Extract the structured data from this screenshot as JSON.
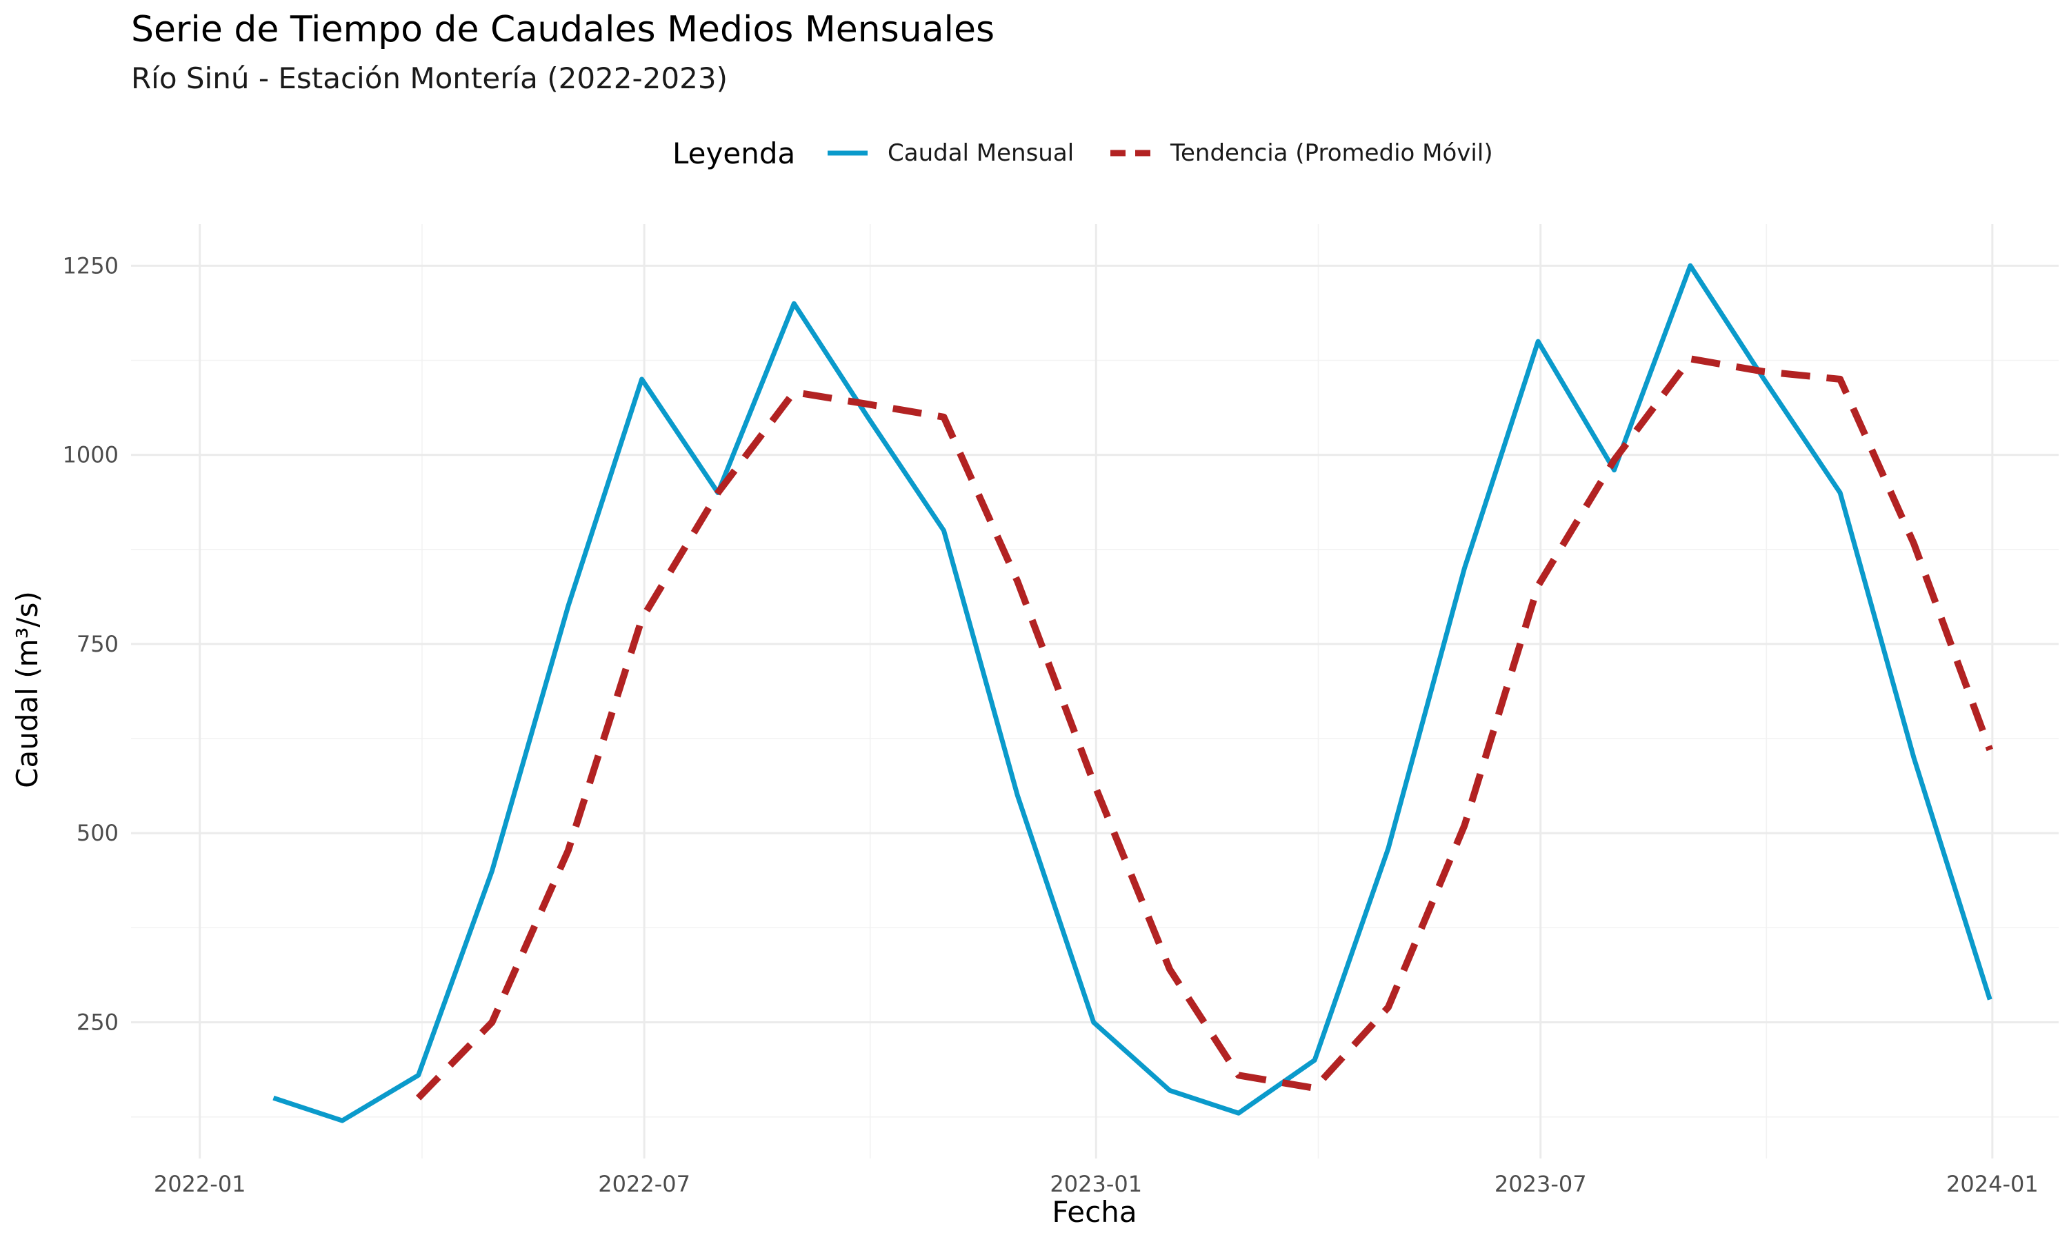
{
  "chart_data": {
    "type": "line",
    "title": "Serie de Tiempo de Caudales Medios Mensuales",
    "subtitle": "Río Sinú - Estación Montería (2022-2023)",
    "xlabel": "Fecha",
    "ylabel": "Caudal (m³/s)",
    "legend": {
      "title": "Leyenda",
      "position": "top",
      "entries": [
        "Caudal Mensual",
        "Tendencia (Promedio Móvil)"
      ]
    },
    "xlim": [
      "2021-12-04",
      "2024-01-28"
    ],
    "ylim": [
      70,
      1305
    ],
    "x_ticks": [
      "2022-01",
      "2022-07",
      "2023-01",
      "2023-07",
      "2024-01"
    ],
    "y_ticks": [
      250,
      500,
      750,
      1000,
      1250
    ],
    "grid": true,
    "series": [
      {
        "name": "Caudal Mensual",
        "color": "#0a9acb",
        "style": "solid",
        "x": [
          "2022-01-31",
          "2022-02-28",
          "2022-03-31",
          "2022-04-30",
          "2022-05-31",
          "2022-06-30",
          "2022-07-31",
          "2022-08-31",
          "2022-09-30",
          "2022-10-31",
          "2022-11-30",
          "2022-12-31",
          "2023-01-31",
          "2023-02-28",
          "2023-03-31",
          "2023-04-30",
          "2023-05-31",
          "2023-06-30",
          "2023-07-31",
          "2023-08-31",
          "2023-09-30",
          "2023-10-31",
          "2023-11-30",
          "2023-12-31"
        ],
        "values": [
          150,
          120,
          180,
          450,
          800,
          1100,
          950,
          1200,
          1050,
          900,
          550,
          250,
          160,
          130,
          200,
          480,
          850,
          1150,
          980,
          1250,
          1100,
          950,
          600,
          280
        ]
      },
      {
        "name": "Tendencia (Promedio Móvil)",
        "color": "#b22222",
        "style": "dashed",
        "x": [
          "2022-03-31",
          "2022-04-30",
          "2022-05-31",
          "2022-06-30",
          "2022-07-31",
          "2022-08-31",
          "2022-09-30",
          "2022-10-31",
          "2022-11-30",
          "2022-12-31",
          "2023-01-31",
          "2023-02-28",
          "2023-03-31",
          "2023-04-30",
          "2023-05-31",
          "2023-06-30",
          "2023-07-31",
          "2023-08-31",
          "2023-09-30",
          "2023-10-31",
          "2023-11-30",
          "2023-12-31"
        ],
        "values": [
          150,
          250,
          477,
          783,
          950,
          1083,
          1067,
          1050,
          833,
          567,
          320,
          180,
          163,
          270,
          510,
          827,
          993,
          1127,
          1110,
          1100,
          883,
          610
        ]
      }
    ]
  }
}
